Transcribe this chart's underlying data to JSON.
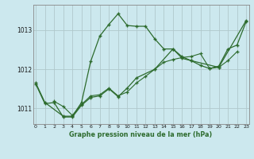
{
  "title": "Graphe pression niveau de la mer (hPa)",
  "bg_color": "#cce8ee",
  "line_color": "#2d6b2d",
  "grid_color": "#b0c8cc",
  "ylim": [
    1010.6,
    1013.65
  ],
  "yticks": [
    1011,
    1012,
    1013
  ],
  "ytick_labels": [
    "1011",
    "1012",
    "1013"
  ],
  "xticks": [
    0,
    1,
    2,
    3,
    4,
    5,
    6,
    7,
    8,
    9,
    10,
    11,
    12,
    13,
    14,
    15,
    16,
    17,
    18,
    19,
    20,
    21,
    22,
    23
  ],
  "line1_x": [
    0,
    1,
    3,
    4,
    5,
    6,
    7,
    8,
    9,
    10,
    11,
    12,
    13,
    14,
    15,
    16,
    17,
    20,
    23
  ],
  "line1_y": [
    1011.65,
    1011.15,
    1010.8,
    1010.8,
    1011.15,
    1012.2,
    1012.85,
    1013.15,
    1013.42,
    1013.12,
    1013.1,
    1013.1,
    1012.78,
    1012.52,
    1012.52,
    1012.32,
    1012.22,
    1012.05,
    1013.25
  ],
  "line2_x": [
    2,
    3,
    4,
    5,
    6,
    7,
    8,
    9,
    10,
    11,
    12,
    13,
    14,
    15,
    16,
    17,
    18,
    19,
    20,
    21,
    22
  ],
  "line2_y": [
    1011.18,
    1011.05,
    1010.82,
    1011.1,
    1011.32,
    1011.35,
    1011.52,
    1011.32,
    1011.42,
    1011.65,
    1011.82,
    1012.0,
    1012.18,
    1012.25,
    1012.3,
    1012.33,
    1012.4,
    1012.02,
    1012.05,
    1012.22,
    1012.45
  ],
  "line3_x": [
    0,
    1,
    2,
    3,
    4,
    5,
    6,
    7,
    8,
    9,
    10,
    11,
    13,
    15,
    16,
    17,
    18,
    19,
    20,
    21,
    22,
    23
  ],
  "line3_y": [
    1011.62,
    1011.12,
    1011.15,
    1010.78,
    1010.78,
    1011.08,
    1011.28,
    1011.32,
    1011.5,
    1011.3,
    1011.52,
    1011.78,
    1012.0,
    1012.52,
    1012.28,
    1012.22,
    1012.1,
    1012.02,
    1012.08,
    1012.52,
    1012.62,
    1013.22
  ]
}
